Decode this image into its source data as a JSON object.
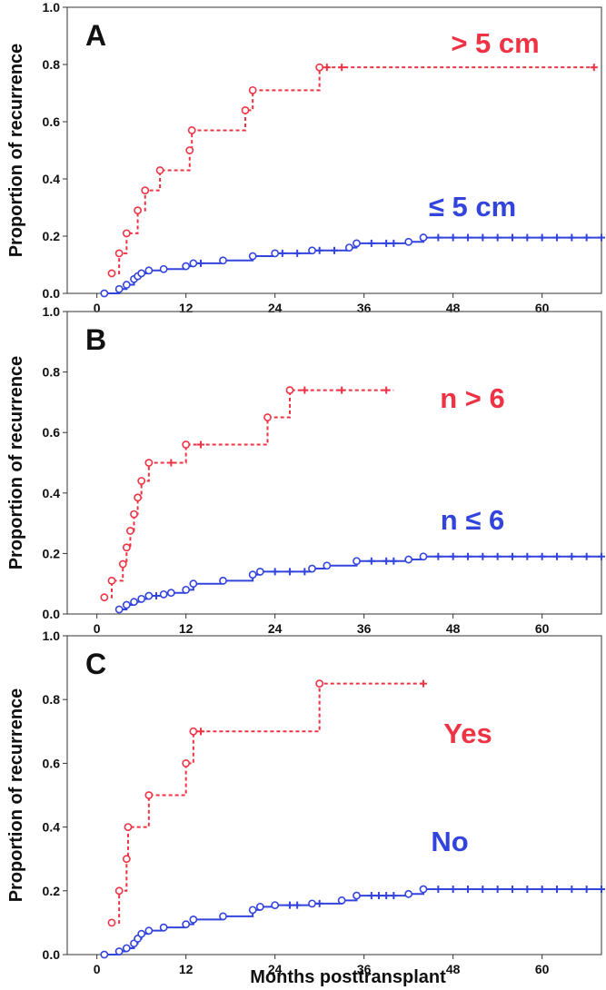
{
  "figure": {
    "xlabel": "Months posttransplant"
  },
  "chart_data": [
    {
      "type": "line",
      "panel_label": "A",
      "ylabel": "Proportion of recurrence",
      "xlim": [
        -4,
        68
      ],
      "ylim": [
        0,
        1
      ],
      "xticks": [
        "0",
        "12",
        "24",
        "36",
        "48",
        "60"
      ],
      "yticks": [
        "0.0",
        "0.2",
        "0.4",
        "0.6",
        "0.8",
        "1.0"
      ],
      "grid": false,
      "series": [
        {
          "name": "> 5 cm",
          "color": "#ee3344",
          "style": "dashed",
          "steps": [
            [
              2,
              0.07
            ],
            [
              3,
              0.14
            ],
            [
              4,
              0.21
            ],
            [
              5.5,
              0.29
            ],
            [
              6.5,
              0.36
            ],
            [
              8.5,
              0.43
            ],
            [
              12.5,
              0.5
            ],
            [
              12.8,
              0.57
            ],
            [
              20,
              0.64
            ],
            [
              21,
              0.71
            ],
            [
              30,
              0.79
            ],
            [
              67,
              0.79
            ]
          ],
          "events": [
            [
              2,
              0.07
            ],
            [
              3,
              0.14
            ],
            [
              4,
              0.21
            ],
            [
              5.5,
              0.29
            ],
            [
              6.5,
              0.36
            ],
            [
              8.5,
              0.43
            ],
            [
              12.5,
              0.5
            ],
            [
              12.8,
              0.57
            ],
            [
              20,
              0.64
            ],
            [
              21,
              0.71
            ],
            [
              30,
              0.79
            ]
          ],
          "censored": [
            [
              31,
              0.79
            ],
            [
              33,
              0.79
            ],
            [
              67,
              0.79
            ]
          ]
        },
        {
          "name": "≤ 5 cm",
          "color": "#3344dd",
          "style": "solid",
          "steps": [
            [
              1,
              0
            ],
            [
              3,
              0.015
            ],
            [
              4,
              0.03
            ],
            [
              5,
              0.05
            ],
            [
              5.5,
              0.06
            ],
            [
              6,
              0.07
            ],
            [
              7,
              0.08
            ],
            [
              9,
              0.085
            ],
            [
              12,
              0.095
            ],
            [
              13,
              0.105
            ],
            [
              17,
              0.115
            ],
            [
              21,
              0.13
            ],
            [
              24,
              0.14
            ],
            [
              29,
              0.15
            ],
            [
              34,
              0.16
            ],
            [
              35,
              0.175
            ],
            [
              42,
              0.18
            ],
            [
              44,
              0.195
            ],
            [
              68,
              0.195
            ]
          ],
          "events": [
            [
              1,
              0
            ],
            [
              3,
              0.015
            ],
            [
              4,
              0.03
            ],
            [
              5,
              0.05
            ],
            [
              5.5,
              0.06
            ],
            [
              6,
              0.07
            ],
            [
              7,
              0.08
            ],
            [
              9,
              0.085
            ],
            [
              12,
              0.095
            ],
            [
              13,
              0.105
            ],
            [
              17,
              0.115
            ],
            [
              21,
              0.13
            ],
            [
              24,
              0.14
            ],
            [
              29,
              0.15
            ],
            [
              34,
              0.16
            ],
            [
              35,
              0.175
            ],
            [
              42,
              0.18
            ],
            [
              44,
              0.195
            ]
          ],
          "censored": [
            [
              14,
              0.105
            ],
            [
              25,
              0.14
            ],
            [
              27,
              0.14
            ],
            [
              30,
              0.15
            ],
            [
              32,
              0.15
            ],
            [
              37,
              0.175
            ],
            [
              39,
              0.175
            ],
            [
              40,
              0.175
            ],
            [
              46,
              0.195
            ],
            [
              48,
              0.195
            ],
            [
              50,
              0.195
            ],
            [
              52,
              0.195
            ],
            [
              54,
              0.195
            ],
            [
              56,
              0.195
            ],
            [
              58,
              0.195
            ],
            [
              60,
              0.195
            ],
            [
              62,
              0.195
            ],
            [
              64,
              0.195
            ],
            [
              66,
              0.195
            ],
            [
              68,
              0.195
            ]
          ]
        }
      ]
    },
    {
      "type": "line",
      "panel_label": "B",
      "ylabel": "Proportion of recurrence",
      "xlim": [
        -4,
        68
      ],
      "ylim": [
        0,
        1
      ],
      "xticks": [
        "0",
        "12",
        "24",
        "36",
        "48",
        "60"
      ],
      "yticks": [
        "0.0",
        "0.2",
        "0.4",
        "0.6",
        "0.8",
        "1.0"
      ],
      "grid": false,
      "series": [
        {
          "name": "n > 6",
          "color": "#ee3344",
          "style": "dashed",
          "steps": [
            [
              1,
              0.055
            ],
            [
              2,
              0.11
            ],
            [
              3.5,
              0.165
            ],
            [
              4,
              0.22
            ],
            [
              4.5,
              0.275
            ],
            [
              5,
              0.33
            ],
            [
              5.5,
              0.385
            ],
            [
              6,
              0.44
            ],
            [
              7,
              0.5
            ],
            [
              12,
              0.56
            ],
            [
              23,
              0.65
            ],
            [
              26,
              0.74
            ],
            [
              40,
              0.74
            ]
          ],
          "events": [
            [
              1,
              0.055
            ],
            [
              2,
              0.11
            ],
            [
              3.5,
              0.165
            ],
            [
              4,
              0.22
            ],
            [
              4.5,
              0.275
            ],
            [
              5,
              0.33
            ],
            [
              5.5,
              0.385
            ],
            [
              6,
              0.44
            ],
            [
              7,
              0.5
            ],
            [
              12,
              0.56
            ],
            [
              23,
              0.65
            ],
            [
              26,
              0.74
            ]
          ],
          "censored": [
            [
              10,
              0.5
            ],
            [
              14,
              0.56
            ],
            [
              28,
              0.74
            ],
            [
              33,
              0.74
            ],
            [
              39,
              0.74
            ]
          ]
        },
        {
          "name": "n ≤ 6",
          "color": "#3344dd",
          "style": "solid",
          "steps": [
            [
              3,
              0.015
            ],
            [
              4,
              0.03
            ],
            [
              5,
              0.04
            ],
            [
              6,
              0.05
            ],
            [
              7,
              0.06
            ],
            [
              9,
              0.065
            ],
            [
              10,
              0.07
            ],
            [
              12,
              0.08
            ],
            [
              13,
              0.1
            ],
            [
              17,
              0.11
            ],
            [
              21,
              0.13
            ],
            [
              22,
              0.14
            ],
            [
              29,
              0.15
            ],
            [
              31,
              0.16
            ],
            [
              35,
              0.175
            ],
            [
              42,
              0.18
            ],
            [
              44,
              0.19
            ],
            [
              68,
              0.19
            ]
          ],
          "events": [
            [
              3,
              0.015
            ],
            [
              4,
              0.03
            ],
            [
              5,
              0.04
            ],
            [
              6,
              0.05
            ],
            [
              7,
              0.06
            ],
            [
              9,
              0.065
            ],
            [
              10,
              0.07
            ],
            [
              12,
              0.08
            ],
            [
              13,
              0.1
            ],
            [
              17,
              0.11
            ],
            [
              21,
              0.13
            ],
            [
              22,
              0.14
            ],
            [
              29,
              0.15
            ],
            [
              31,
              0.16
            ],
            [
              35,
              0.175
            ],
            [
              42,
              0.18
            ],
            [
              44,
              0.19
            ]
          ],
          "censored": [
            [
              8,
              0.06
            ],
            [
              24,
              0.14
            ],
            [
              26,
              0.14
            ],
            [
              28,
              0.14
            ],
            [
              37,
              0.175
            ],
            [
              39,
              0.175
            ],
            [
              40,
              0.175
            ],
            [
              46,
              0.19
            ],
            [
              48,
              0.19
            ],
            [
              50,
              0.19
            ],
            [
              52,
              0.19
            ],
            [
              54,
              0.19
            ],
            [
              56,
              0.19
            ],
            [
              58,
              0.19
            ],
            [
              60,
              0.19
            ],
            [
              62,
              0.19
            ],
            [
              64,
              0.19
            ],
            [
              66,
              0.19
            ],
            [
              68,
              0.19
            ]
          ]
        }
      ]
    },
    {
      "type": "line",
      "panel_label": "C",
      "ylabel": "Proportion of recurrence",
      "xlim": [
        -4,
        68
      ],
      "ylim": [
        0,
        1
      ],
      "xticks": [
        "0",
        "12",
        "24",
        "36",
        "48",
        "60"
      ],
      "yticks": [
        "0.0",
        "0.2",
        "0.4",
        "0.6",
        "0.8",
        "1.0"
      ],
      "grid": false,
      "series": [
        {
          "name": "Yes",
          "color": "#ee3344",
          "style": "dashed",
          "steps": [
            [
              2,
              0.1
            ],
            [
              3,
              0.2
            ],
            [
              4,
              0.3
            ],
            [
              4.2,
              0.4
            ],
            [
              7,
              0.5
            ],
            [
              12,
              0.6
            ],
            [
              13,
              0.7
            ],
            [
              30,
              0.85
            ],
            [
              44,
              0.85
            ]
          ],
          "events": [
            [
              2,
              0.1
            ],
            [
              3,
              0.2
            ],
            [
              4,
              0.3
            ],
            [
              4.2,
              0.4
            ],
            [
              7,
              0.5
            ],
            [
              12,
              0.6
            ],
            [
              13,
              0.7
            ],
            [
              30,
              0.85
            ]
          ],
          "censored": [
            [
              14,
              0.7
            ],
            [
              44,
              0.85
            ]
          ]
        },
        {
          "name": "No",
          "color": "#3344dd",
          "style": "solid",
          "steps": [
            [
              1,
              0
            ],
            [
              3,
              0.01
            ],
            [
              4,
              0.02
            ],
            [
              5,
              0.035
            ],
            [
              5.5,
              0.05
            ],
            [
              6,
              0.065
            ],
            [
              7,
              0.075
            ],
            [
              9,
              0.085
            ],
            [
              12,
              0.095
            ],
            [
              13,
              0.11
            ],
            [
              17,
              0.12
            ],
            [
              21,
              0.14
            ],
            [
              22,
              0.15
            ],
            [
              24,
              0.155
            ],
            [
              29,
              0.16
            ],
            [
              33,
              0.17
            ],
            [
              35,
              0.185
            ],
            [
              42,
              0.19
            ],
            [
              44,
              0.205
            ],
            [
              68,
              0.205
            ]
          ],
          "events": [
            [
              1,
              0
            ],
            [
              3,
              0.01
            ],
            [
              4,
              0.02
            ],
            [
              5,
              0.035
            ],
            [
              5.5,
              0.05
            ],
            [
              6,
              0.065
            ],
            [
              7,
              0.075
            ],
            [
              9,
              0.085
            ],
            [
              12,
              0.095
            ],
            [
              13,
              0.11
            ],
            [
              17,
              0.12
            ],
            [
              21,
              0.14
            ],
            [
              22,
              0.15
            ],
            [
              24,
              0.155
            ],
            [
              29,
              0.16
            ],
            [
              33,
              0.17
            ],
            [
              35,
              0.185
            ],
            [
              42,
              0.19
            ],
            [
              44,
              0.205
            ]
          ],
          "censored": [
            [
              26,
              0.155
            ],
            [
              27,
              0.155
            ],
            [
              30,
              0.16
            ],
            [
              37,
              0.185
            ],
            [
              38,
              0.185
            ],
            [
              39,
              0.185
            ],
            [
              40,
              0.185
            ],
            [
              46,
              0.205
            ],
            [
              48,
              0.205
            ],
            [
              50,
              0.205
            ],
            [
              52,
              0.205
            ],
            [
              54,
              0.205
            ],
            [
              56,
              0.205
            ],
            [
              58,
              0.205
            ],
            [
              60,
              0.205
            ],
            [
              62,
              0.205
            ],
            [
              64,
              0.205
            ],
            [
              66,
              0.205
            ],
            [
              68,
              0.205
            ]
          ]
        }
      ]
    }
  ]
}
